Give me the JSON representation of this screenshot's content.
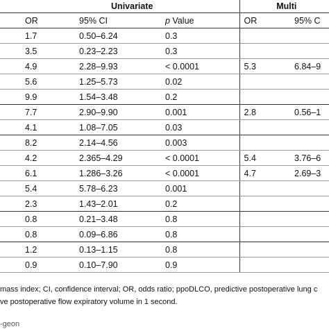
{
  "header": {
    "univariate": "Univariate",
    "multi": "Multi",
    "columns": [
      "OR",
      "95% CI",
      "p Value",
      "OR",
      "95% C"
    ]
  },
  "table": {
    "rows": [
      [
        "1.7",
        "0.50–6.24",
        "0.3"
      ],
      [
        "3.5",
        "0.23–2.23",
        "0.3"
      ],
      [
        "4.9",
        "2.28–9.93",
        "< 0.0001",
        "5.3",
        "6.84–9"
      ],
      [
        "5.6",
        "1.25–5.73",
        "0.02"
      ],
      [
        "9.9",
        "1.54–3.48",
        "0.2"
      ],
      [
        "7.7",
        "2.90–9.90",
        "0.001",
        "2.8",
        "0.56–1"
      ],
      [
        "4.1",
        "1.08–7.05",
        "0.03"
      ],
      [
        "8.2",
        "2.14–4.56",
        "0.003"
      ],
      [
        "4.2",
        "2.365–4.29",
        "< 0.0001",
        "5.4",
        "3.76–6"
      ],
      [
        "6.1",
        "1.286–3.26",
        "< 0.0001",
        "4.7",
        "2.69–3"
      ],
      [
        "5.4",
        "5.78–6.23",
        "0.001"
      ],
      [
        "2.3",
        "1.43–2.01",
        "0.2"
      ],
      [
        "0.8",
        "0.21–3.48",
        "0.8"
      ],
      [
        "0.8",
        "0.09–6.86",
        "0.8"
      ],
      [
        "1.2",
        "0.13–1.15",
        "0.8"
      ],
      [
        "0.9",
        "0.10–7.90",
        "0.9"
      ]
    ]
  },
  "footnote": [
    "mass index; CI, confidence interval; OR, odds ratio; ppoDLCO, predictive postoperative lung c",
    "ve postoperative flow expiratory volume in 1 second."
  ],
  "source": "-geon"
}
